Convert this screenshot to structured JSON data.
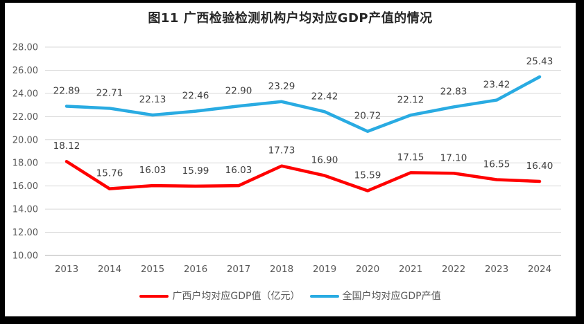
{
  "chart_data": {
    "type": "line",
    "title": "图11 广西检验检测机构户均对应GDP产值的情况",
    "categories": [
      "2013",
      "2014",
      "2015",
      "2016",
      "2017",
      "2018",
      "2019",
      "2020",
      "2021",
      "2022",
      "2023",
      "2024"
    ],
    "series": [
      {
        "name": "广西户均对应GDP值（亿元）",
        "color": "#FF0000",
        "values": [
          18.12,
          15.76,
          16.03,
          15.99,
          16.03,
          17.73,
          16.9,
          15.59,
          17.15,
          17.1,
          16.55,
          16.4
        ]
      },
      {
        "name": "全国户均对应GDP产值",
        "color": "#29ABE2",
        "values": [
          22.89,
          22.71,
          22.13,
          22.46,
          22.9,
          23.29,
          22.42,
          20.72,
          22.12,
          22.83,
          23.42,
          25.43
        ]
      }
    ],
    "ylim": [
      10,
      28
    ],
    "ytick_step": 2,
    "ytick_labels": [
      "10.00",
      "12.00",
      "14.00",
      "16.00",
      "18.00",
      "20.00",
      "22.00",
      "24.00",
      "26.00",
      "28.00"
    ],
    "grid": true,
    "data_labels": true,
    "legend_position": "bottom"
  },
  "colors": {
    "grid": "#D9D9D9",
    "axis": "#BFBFBF",
    "tick_label": "#595959",
    "data_label": "#404040",
    "title": "#262626",
    "legend_text": "#595959",
    "frame": "#000000",
    "background": "#FFFFFF"
  }
}
